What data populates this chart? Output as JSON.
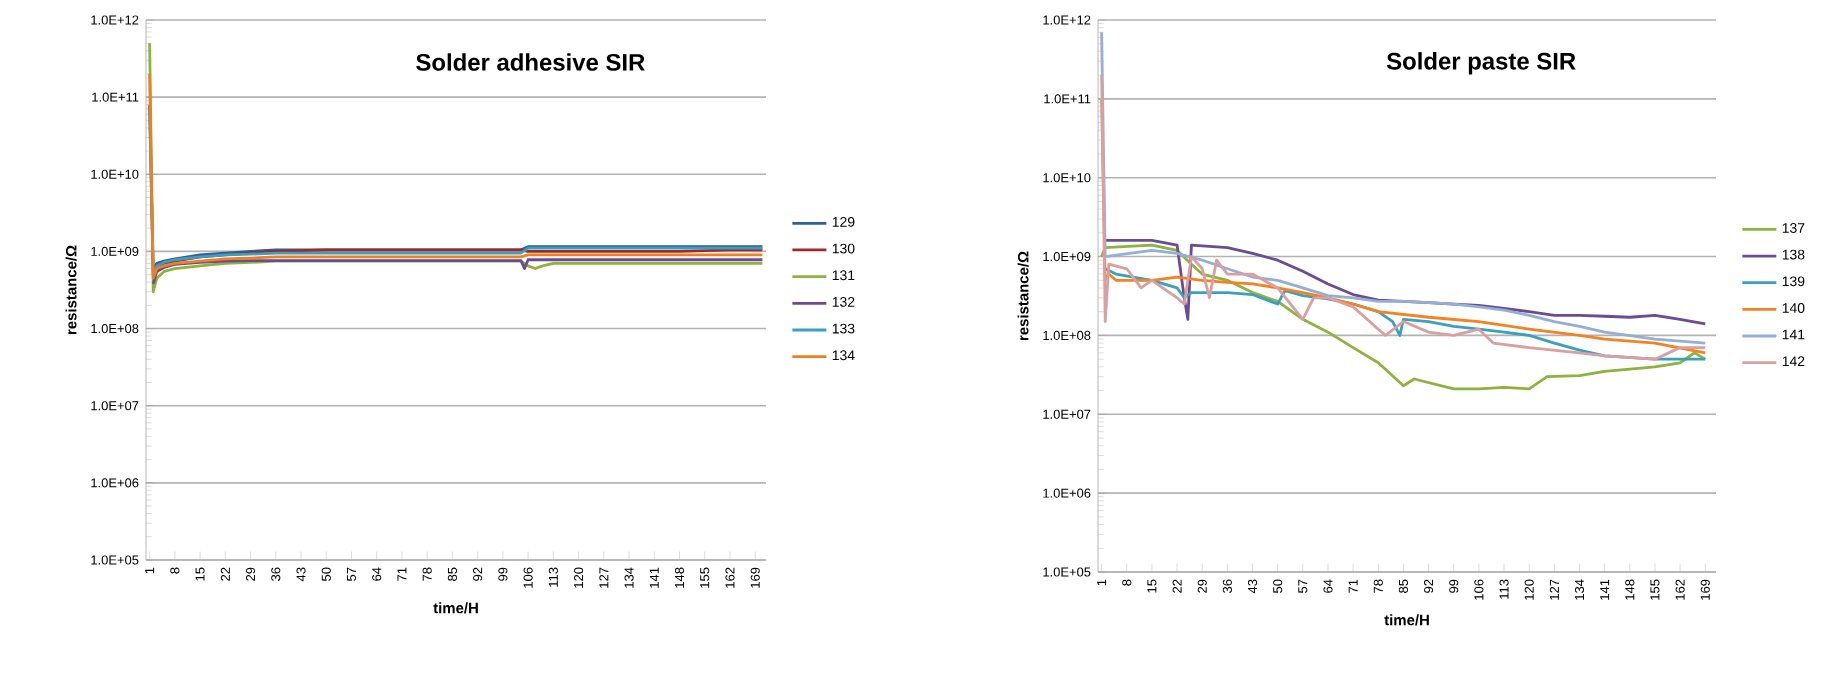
{
  "chart_data": [
    {
      "type": "line",
      "title": "Solder adhesive SIR",
      "xlabel": "time/H",
      "ylabel": "resistance/Ω",
      "xlim": [
        0,
        172
      ],
      "xticks": [
        1,
        8,
        15,
        22,
        29,
        36,
        43,
        50,
        57,
        64,
        71,
        78,
        85,
        92,
        99,
        106,
        113,
        120,
        127,
        134,
        141,
        148,
        155,
        162,
        169
      ],
      "ylim": [
        100000,
        1000000000000
      ],
      "yticks": [
        {
          "value": 100000,
          "label": "1.0E+05"
        },
        {
          "value": 1000000,
          "label": "1.0E+06"
        },
        {
          "value": 10000000,
          "label": "1.0E+07"
        },
        {
          "value": 100000000,
          "label": "1.0E+08"
        },
        {
          "value": 1000000000,
          "label": "1.0E+09"
        },
        {
          "value": 10000000000,
          "label": "1.0E+10"
        },
        {
          "value": 100000000000,
          "label": "1.0E+11"
        },
        {
          "value": 1000000000000,
          "label": "1.0E+12"
        }
      ],
      "log": "y",
      "grid": "y",
      "legend": "right",
      "series": [
        {
          "name": "129",
          "color": "#2e5f9e",
          "x": [
            2,
            3,
            5,
            8,
            15,
            22,
            29,
            36,
            50,
            64,
            78,
            92,
            104,
            105,
            106,
            113,
            120,
            134,
            148,
            162,
            171
          ],
          "values": [
            600000000,
            700000000,
            750000000,
            800000000,
            900000000,
            950000000,
            1000000000,
            1050000000,
            1050000000,
            1050000000,
            1050000000,
            1050000000,
            1050000000,
            1100000000,
            1150000000,
            1150000000,
            1150000000,
            1150000000,
            1150000000,
            1150000000,
            1150000000
          ]
        },
        {
          "name": "130",
          "color": "#a0282a",
          "x": [
            1,
            2,
            3,
            5,
            8,
            15,
            22,
            29,
            36,
            50,
            64,
            78,
            92,
            104,
            106,
            120,
            134,
            148,
            162,
            171
          ],
          "values": [
            80000000000,
            550000000,
            650000000,
            700000000,
            750000000,
            850000000,
            900000000,
            950000000,
            1000000000,
            1050000000,
            1050000000,
            1050000000,
            1050000000,
            1050000000,
            1000000000,
            1000000000,
            1000000000,
            1000000000,
            1050000000,
            1050000000
          ]
        },
        {
          "name": "131",
          "color": "#8db33c",
          "x": [
            1,
            2,
            3,
            5,
            8,
            15,
            22,
            29,
            36,
            50,
            64,
            78,
            92,
            104,
            106,
            108,
            110,
            113,
            120,
            134,
            148,
            162,
            171
          ],
          "values": [
            500000000000,
            300000000,
            450000000,
            550000000,
            600000000,
            650000000,
            700000000,
            720000000,
            750000000,
            750000000,
            750000000,
            750000000,
            750000000,
            750000000,
            650000000,
            600000000,
            650000000,
            700000000,
            700000000,
            700000000,
            700000000,
            700000000,
            700000000
          ]
        },
        {
          "name": "132",
          "color": "#6a4c93",
          "x": [
            2,
            3,
            5,
            8,
            15,
            22,
            29,
            36,
            50,
            64,
            78,
            92,
            104,
            105,
            106,
            113,
            120,
            134,
            148,
            162,
            171
          ],
          "values": [
            380000000,
            550000000,
            620000000,
            680000000,
            720000000,
            750000000,
            760000000,
            760000000,
            760000000,
            760000000,
            760000000,
            760000000,
            760000000,
            600000000,
            780000000,
            780000000,
            780000000,
            780000000,
            780000000,
            780000000,
            780000000
          ]
        },
        {
          "name": "133",
          "color": "#3aa0c0",
          "x": [
            1,
            2,
            3,
            5,
            8,
            15,
            22,
            29,
            36,
            50,
            64,
            78,
            92,
            104,
            106,
            113,
            120,
            134,
            148,
            162,
            171
          ],
          "values": [
            70000000000,
            500000000,
            650000000,
            720000000,
            780000000,
            850000000,
            900000000,
            920000000,
            950000000,
            950000000,
            950000000,
            950000000,
            950000000,
            950000000,
            1100000000,
            1100000000,
            1100000000,
            1100000000,
            1100000000,
            1100000000,
            1100000000
          ]
        },
        {
          "name": "134",
          "color": "#f07f1f",
          "x": [
            1,
            2,
            3,
            5,
            8,
            15,
            22,
            29,
            36,
            50,
            64,
            78,
            92,
            104,
            106,
            120,
            134,
            148,
            162,
            171
          ],
          "values": [
            200000000000,
            450000000,
            600000000,
            650000000,
            700000000,
            750000000,
            800000000,
            820000000,
            850000000,
            850000000,
            850000000,
            850000000,
            850000000,
            850000000,
            900000000,
            900000000,
            900000000,
            900000000,
            900000000,
            900000000
          ]
        }
      ]
    },
    {
      "type": "line",
      "title": "Solder paste SIR",
      "xlabel": "time/H",
      "ylabel": "resistance/Ω",
      "xlim": [
        0,
        172
      ],
      "xticks": [
        1,
        8,
        15,
        22,
        29,
        36,
        43,
        50,
        57,
        64,
        71,
        78,
        85,
        92,
        99,
        106,
        113,
        120,
        127,
        134,
        141,
        148,
        155,
        162,
        169
      ],
      "ylim": [
        100000,
        1000000000000
      ],
      "yticks": [
        {
          "value": 100000,
          "label": "1.0E+05"
        },
        {
          "value": 1000000,
          "label": "1.0E+06"
        },
        {
          "value": 10000000,
          "label": "1.0E+07"
        },
        {
          "value": 100000000,
          "label": "1.0E+08"
        },
        {
          "value": 1000000000,
          "label": "1.0E+09"
        },
        {
          "value": 10000000000,
          "label": "1.0E+10"
        },
        {
          "value": 100000000000,
          "label": "1.0E+11"
        },
        {
          "value": 1000000000000,
          "label": "1.0E+12"
        }
      ],
      "log": "y",
      "grid": "y",
      "legend": "right",
      "series": [
        {
          "name": "137",
          "color": "#8db33c",
          "x": [
            1,
            2,
            15,
            22,
            26,
            29,
            36,
            43,
            50,
            57,
            64,
            71,
            78,
            85,
            88,
            99,
            106,
            113,
            120,
            125,
            134,
            141,
            155,
            162,
            166,
            169
          ],
          "values": [
            1000000000,
            1300000000,
            1400000000,
            1200000000,
            800000000,
            600000000,
            500000000,
            350000000,
            270000000,
            160000000,
            110000000,
            70000000,
            45000000,
            23000000,
            28000000,
            21000000,
            21000000,
            22000000,
            21000000,
            30000000,
            31000000,
            35000000,
            40000000,
            45000000,
            60000000,
            50000000
          ]
        },
        {
          "name": "138",
          "color": "#6a4c93",
          "x": [
            2,
            15,
            22,
            24,
            25,
            26,
            36,
            43,
            50,
            57,
            64,
            71,
            78,
            85,
            92,
            99,
            106,
            113,
            120,
            127,
            134,
            141,
            148,
            155,
            162,
            169
          ],
          "values": [
            1600000000,
            1600000000,
            1400000000,
            300000000,
            160000000,
            1400000000,
            1300000000,
            1100000000,
            900000000,
            650000000,
            450000000,
            330000000,
            280000000,
            270000000,
            260000000,
            250000000,
            240000000,
            220000000,
            200000000,
            180000000,
            180000000,
            175000000,
            170000000,
            180000000,
            160000000,
            140000000
          ]
        },
        {
          "name": "139",
          "color": "#3aa0c0",
          "x": [
            2,
            5,
            15,
            22,
            24,
            26,
            36,
            43,
            50,
            52,
            57,
            64,
            71,
            78,
            82,
            84,
            85,
            92,
            99,
            106,
            113,
            120,
            127,
            134,
            141,
            155,
            169
          ],
          "values": [
            700000000,
            600000000,
            500000000,
            400000000,
            300000000,
            350000000,
            350000000,
            330000000,
            250000000,
            370000000,
            320000000,
            290000000,
            250000000,
            200000000,
            150000000,
            100000000,
            160000000,
            150000000,
            130000000,
            120000000,
            110000000,
            100000000,
            80000000,
            65000000,
            55000000,
            50000000,
            50000000
          ]
        },
        {
          "name": "140",
          "color": "#f5821f",
          "x": [
            1,
            2,
            3,
            5,
            15,
            22,
            29,
            36,
            43,
            50,
            57,
            64,
            71,
            78,
            92,
            106,
            120,
            134,
            141,
            155,
            169
          ],
          "values": [
            100000000000,
            500000000,
            600000000,
            500000000,
            500000000,
            550000000,
            500000000,
            470000000,
            450000000,
            400000000,
            350000000,
            300000000,
            250000000,
            200000000,
            170000000,
            150000000,
            120000000,
            100000000,
            90000000,
            80000000,
            60000000
          ]
        },
        {
          "name": "141",
          "color": "#95aed6",
          "x": [
            1,
            2,
            15,
            22,
            29,
            36,
            43,
            50,
            57,
            64,
            71,
            78,
            85,
            92,
            99,
            106,
            113,
            120,
            127,
            134,
            141,
            155,
            169
          ],
          "values": [
            700000000000,
            1000000000,
            1200000000,
            1100000000,
            900000000,
            700000000,
            550000000,
            500000000,
            400000000,
            320000000,
            300000000,
            270000000,
            270000000,
            260000000,
            250000000,
            230000000,
            210000000,
            180000000,
            150000000,
            130000000,
            110000000,
            90000000,
            80000000
          ]
        },
        {
          "name": "142",
          "color": "#d9a0a0",
          "x": [
            1,
            2,
            3,
            8,
            12,
            15,
            22,
            24,
            26,
            29,
            31,
            33,
            36,
            43,
            50,
            57,
            60,
            64,
            71,
            78,
            80,
            85,
            92,
            99,
            106,
            110,
            120,
            134,
            141,
            155,
            162,
            169
          ],
          "values": [
            200000000000,
            150000000,
            800000000,
            700000000,
            400000000,
            500000000,
            300000000,
            250000000,
            1000000000,
            700000000,
            300000000,
            900000000,
            600000000,
            600000000,
            400000000,
            160000000,
            300000000,
            300000000,
            230000000,
            120000000,
            100000000,
            150000000,
            110000000,
            100000000,
            120000000,
            80000000,
            70000000,
            60000000,
            55000000,
            50000000,
            70000000,
            70000000
          ]
        }
      ]
    }
  ]
}
